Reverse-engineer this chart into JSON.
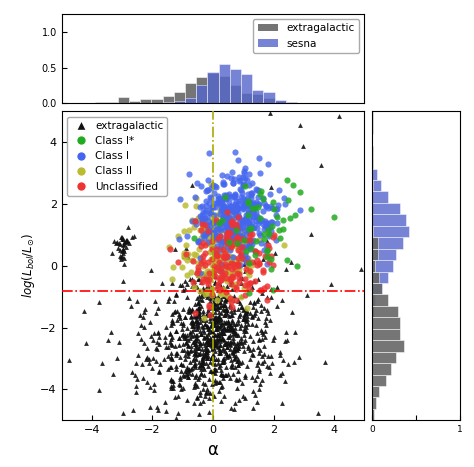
{
  "xlim": [
    -5,
    5
  ],
  "ylim": [
    -5,
    5
  ],
  "xlabel": "α",
  "red_hline_y": -0.8,
  "yellow_vline_x": 0.0,
  "extragalactic_color": "#111111",
  "class_i_star_color": "#22aa22",
  "class_i_color": "#4466ee",
  "class_ii_color": "#bbbb33",
  "unclassified_color": "#ee3333",
  "sesna_hist_color": "#5566cc",
  "extragalactic_hist_color": "#666666",
  "random_seed": 42,
  "n_extragalactic": 1000,
  "n_class_i_star": 55,
  "n_class_i": 380,
  "n_class_ii": 220,
  "n_unclassified": 160,
  "right_xlim": [
    0,
    1
  ]
}
